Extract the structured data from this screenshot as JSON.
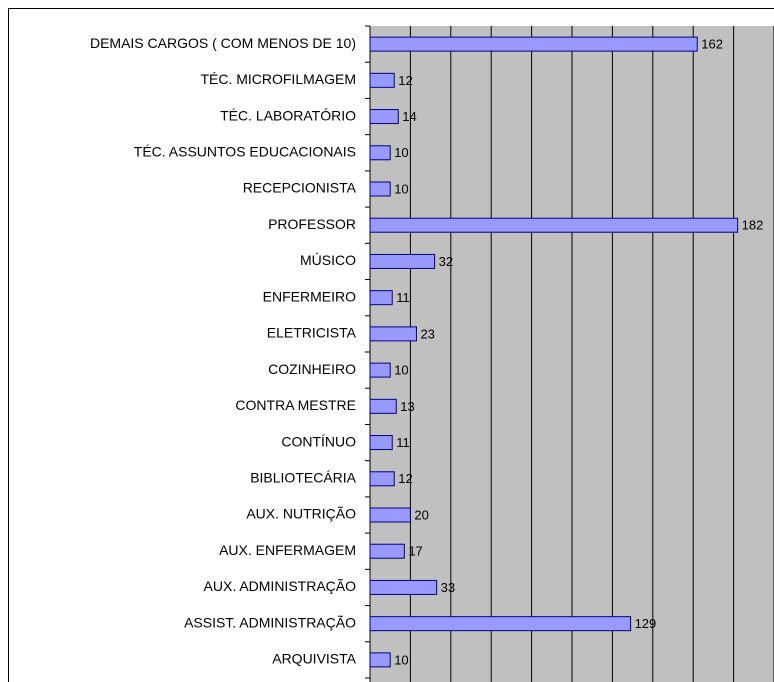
{
  "chart_data": {
    "type": "bar",
    "orientation": "horizontal",
    "categories": [
      "DEMAIS CARGOS ( COM MENOS DE 10)",
      "TÉC. MICROFILMAGEM",
      "TÉC. LABORATÓRIO",
      "TÉC. ASSUNTOS EDUCACIONAIS",
      "RECEPCIONISTA",
      "PROFESSOR",
      "MÚSICO",
      "ENFERMEIRO",
      "ELETRICISTA",
      "COZINHEIRO",
      "CONTRA MESTRE",
      "CONTÍNUO",
      "BIBLIOTECÁRIA",
      "AUX. NUTRIÇÃO",
      "AUX. ENFERMAGEM",
      "AUX. ADMINISTRAÇÃO",
      "ASSIST. ADMINISTRAÇÃO",
      "ARQUIVISTA"
    ],
    "values": [
      162,
      12,
      14,
      10,
      10,
      182,
      32,
      11,
      23,
      10,
      13,
      11,
      12,
      20,
      17,
      33,
      129,
      10
    ],
    "color": "#9999ff",
    "xlim": [
      0,
      200
    ],
    "xticks": [
      0,
      20,
      40,
      60,
      80,
      100,
      120,
      140,
      160,
      180,
      200
    ],
    "grid": true
  }
}
